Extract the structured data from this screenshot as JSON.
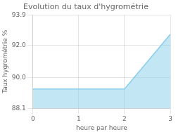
{
  "chart_data": {
    "type": "area",
    "title": "Evolution du taux d'hygrométrie",
    "x_label": "heure par heure",
    "y_label": "Taux hygrométrie %",
    "x": [
      0,
      2,
      3
    ],
    "values": [
      89.3,
      89.3,
      92.7
    ],
    "color": "#87ceeb",
    "xlim": [
      0,
      3
    ],
    "xticks": [
      0,
      1,
      2,
      3
    ],
    "ylim": [
      88.1,
      93.9
    ],
    "yticks": [
      88.1,
      {
        "value": 90.0,
        "label": "90.0"
      },
      {
        "value": 92.0,
        "label": "92.0"
      },
      93.9
    ],
    "grid": true
  }
}
